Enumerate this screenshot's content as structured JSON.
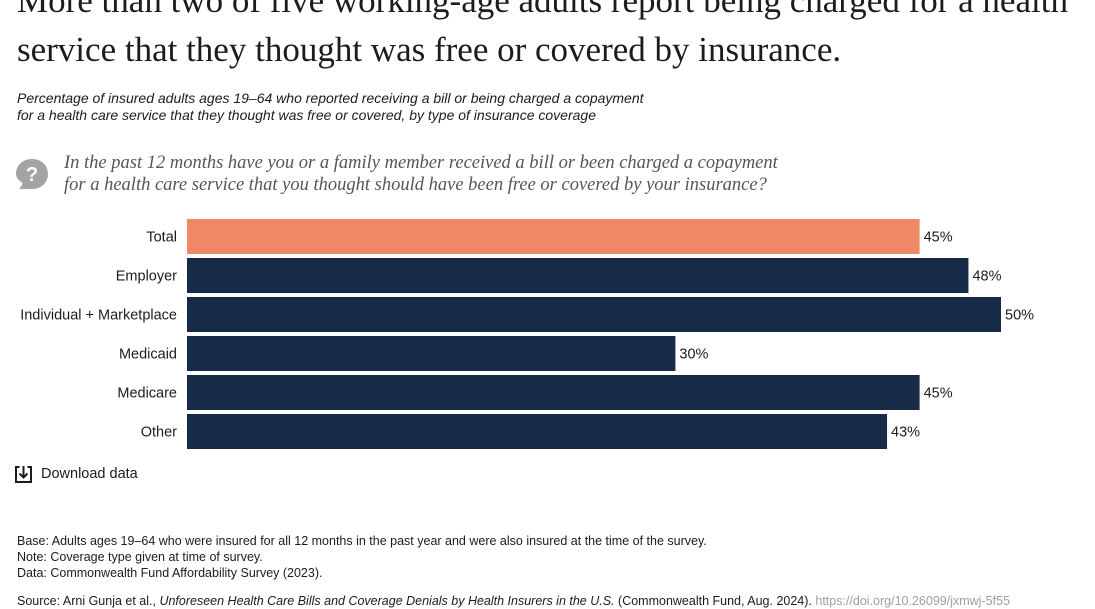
{
  "header": {
    "title_line1": "More than two of five working-age adults report being charged for a health",
    "title_line2": "service that they thought was free or covered by insurance.",
    "subtitle_line1": "Percentage of insured adults ages 19–64 who reported receiving a bill or being charged a copayment",
    "subtitle_line2": "for a health care service that they thought was free or covered, by type of insurance coverage"
  },
  "question": {
    "icon": "question-bubble-icon",
    "line1": "In the past 12 months have you or a family member received a bill or been charged a copayment",
    "line2": "for a health care service that you thought should have been free or covered by your insurance?"
  },
  "chart_data": {
    "type": "bar",
    "orientation": "horizontal",
    "categories": [
      "Total",
      "Employer",
      "Individual + Marketplace",
      "Medicaid",
      "Medicare",
      "Other"
    ],
    "values": [
      45,
      48,
      50,
      30,
      45,
      43
    ],
    "data_labels": [
      "45%",
      "48%",
      "50%",
      "30%",
      "45%",
      "43%"
    ],
    "unit": "%",
    "xlim": [
      0,
      50
    ],
    "grid": false,
    "colors": {
      "highlight": "#f08765",
      "default": "#172b48"
    },
    "highlight_category": "Total"
  },
  "download": {
    "icon": "download-icon",
    "label": "Download data"
  },
  "notes": {
    "base": "Base: Adults ages 19–64 who were insured for all 12 months in the past year and were also insured at the time of the survey.",
    "note": "Note: Coverage type given at time of survey.",
    "data": "Data: Commonwealth Fund Affordability Survey (2023)."
  },
  "source": {
    "prefix": "Source: Arni Gunja et al.,",
    "cite": "Unforeseen Health Care Bills and Coverage Denials by Health Insurers in the U.S.",
    "publisher": "(Commonwealth Fund, Aug. 2024).",
    "link": "https://doi.org/10.26099/jxmwj-5f55"
  }
}
